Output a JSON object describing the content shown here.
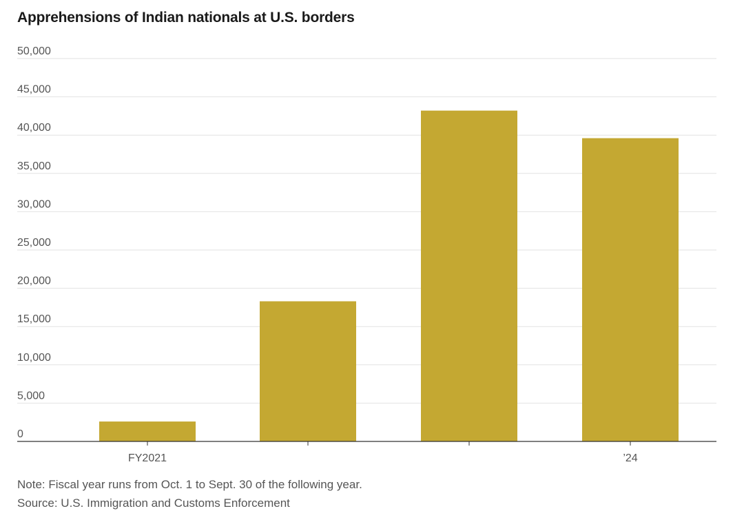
{
  "title": "Apprehensions of Indian nationals at U.S. borders",
  "note": "Note: Fiscal year runs from Oct. 1 to Sept. 30 of the following year.",
  "source": "Source: U.S. Immigration and Customs Enforcement",
  "colors": {
    "bar": "#c4a832",
    "grid": "#e2e2e2",
    "axis": "#333333",
    "text": "#555555"
  },
  "chart_data": {
    "type": "bar",
    "title": "Apprehensions of Indian nationals at U.S. borders",
    "categories": [
      "FY2021",
      "",
      "",
      "’24"
    ],
    "values": [
      2600,
      18300,
      43200,
      39600
    ],
    "xlabel": "",
    "ylabel": "",
    "ylim": [
      0,
      50000
    ],
    "yticks": [
      0,
      5000,
      10000,
      15000,
      20000,
      25000,
      30000,
      35000,
      40000,
      45000,
      50000
    ],
    "ytick_labels": [
      "0",
      "5,000",
      "10,000",
      "15,000",
      "20,000",
      "25,000",
      "30,000",
      "35,000",
      "40,000",
      "45,000",
      "50,000"
    ],
    "grid": true,
    "legend": "none"
  }
}
